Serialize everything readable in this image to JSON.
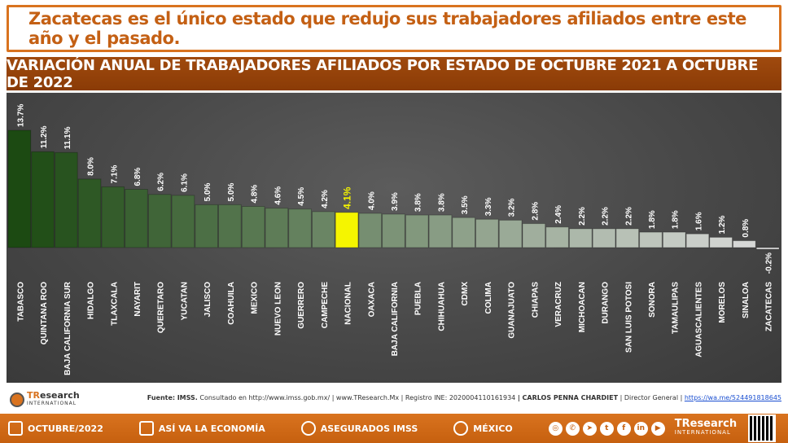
{
  "headline": "Zacatecas es el único estado que redujo sus trabajadores afiliados entre este año y el pasado.",
  "chart_data": {
    "type": "bar",
    "title": "VARIACIÓN ANUAL DE TRABAJADORES AFILIADOS POR ESTADO DE OCTUBRE 2021 A OCTUBRE DE 2022",
    "categories": [
      "TABASCO",
      "QUINTANA ROO",
      "BAJA CALIFORNIA SUR",
      "HIDALGO",
      "TLAXCALA",
      "NAYARIT",
      "QUERETARO",
      "YUCATAN",
      "JALISCO",
      "COAHUILA",
      "MEXICO",
      "NUEVO LEON",
      "GUERRERO",
      "CAMPECHE",
      "NACIONAL",
      "OAXACA",
      "BAJA CALIFORNIA",
      "PUEBLA",
      "CHIHUAHUA",
      "CDMX",
      "COLIMA",
      "GUANAJUATO",
      "CHIAPAS",
      "VERACRUZ",
      "MICHOACAN",
      "DURANGO",
      "SAN LUIS POTOSI",
      "SONORA",
      "TAMAULIPAS",
      "AGUASCALIENTES",
      "MORELOS",
      "SINALOA",
      "ZACATECAS"
    ],
    "values": [
      13.7,
      11.2,
      11.1,
      8.0,
      7.1,
      6.8,
      6.2,
      6.1,
      5.0,
      5.0,
      4.8,
      4.6,
      4.5,
      4.2,
      4.1,
      4.0,
      3.9,
      3.8,
      3.8,
      3.5,
      3.3,
      3.2,
      2.8,
      2.4,
      2.2,
      2.2,
      2.2,
      1.8,
      1.8,
      1.6,
      1.2,
      0.8,
      -0.2
    ],
    "data_labels": [
      "13.7%",
      "11.2%",
      "11.1%",
      "8.0%",
      "7.1%",
      "6.8%",
      "6.2%",
      "6.1%",
      "5.0%",
      "5.0%",
      "4.8%",
      "4.6%",
      "4.5%",
      "4.2%",
      "4.1%",
      "4.0%",
      "3.9%",
      "3.8%",
      "3.8%",
      "3.5%",
      "3.3%",
      "3.2%",
      "2.8%",
      "2.4%",
      "2.2%",
      "2.2%",
      "2.2%",
      "1.8%",
      "1.8%",
      "1.6%",
      "1.2%",
      "0.8%",
      "-0.2%"
    ],
    "highlight": "NACIONAL",
    "highlight_color": "#f5f500",
    "color_start": "#1c4a12",
    "color_end": "#dcdcdc",
    "xlabel": "",
    "ylabel": "",
    "grid": false
  },
  "source": {
    "prefix": "Fuente:",
    "org": "IMSS.",
    "consulted": "Consultado en http://www.imss.gob.mx/",
    "site": "| www.TResearch.Mx",
    "registry": "| Registro INE: 2020004110161934",
    "author": "| CARLOS PENNA CHARDIET",
    "role": "| Director General",
    "link": "https://wa.me/524491818645"
  },
  "brand": {
    "name_a": "TR",
    "name_b": "esearch",
    "sub": "INTERNATIONAL"
  },
  "footer": {
    "items": [
      {
        "label": "OCTUBRE/2022",
        "icon": "calendar-icon"
      },
      {
        "label": "ASÍ VA LA ECONOMÍA",
        "icon": "economy-icon"
      },
      {
        "label": "ASEGURADOS IMSS",
        "icon": "handshake-icon"
      },
      {
        "label": "MÉXICO",
        "icon": "map-pin-icon"
      }
    ],
    "social": [
      "globe-icon",
      "whatsapp-icon",
      "telegram-icon",
      "twitter-icon",
      "facebook-icon",
      "linkedin-icon",
      "youtube-icon"
    ],
    "brand_name": "TResearch",
    "brand_sub": "INTERNATIONAL"
  }
}
